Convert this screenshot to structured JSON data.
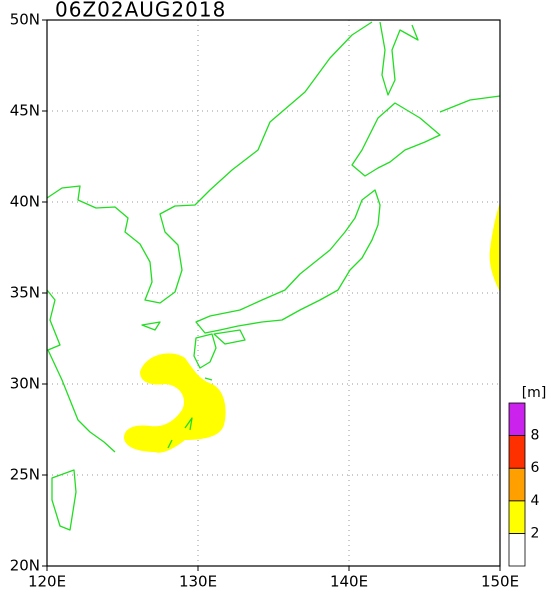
{
  "title": "06Z02AUG2018",
  "map": {
    "lon_labels": [
      "120E",
      "130E",
      "140E",
      "150E"
    ],
    "lat_labels": [
      "20N",
      "25N",
      "30N",
      "35N",
      "40N",
      "45N",
      "50N"
    ]
  },
  "colorbar": {
    "unit": "[m]",
    "levels": [
      2,
      4,
      6,
      8
    ],
    "colors": [
      "#ffffff",
      "#ffff00",
      "#ffa000",
      "#ff3000",
      "#cc22ee"
    ]
  }
}
